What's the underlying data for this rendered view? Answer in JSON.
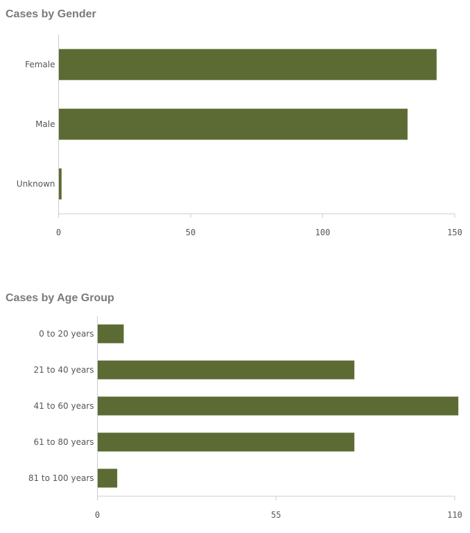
{
  "bar_color": "#5c6b33",
  "chart_data": [
    {
      "type": "bar",
      "orientation": "horizontal",
      "title": "Cases by Gender",
      "categories": [
        "Female",
        "Male",
        "Unknown"
      ],
      "values": [
        143,
        132,
        1
      ],
      "xlim": [
        0,
        150
      ],
      "ticks": [
        0,
        50,
        100,
        150
      ],
      "tick_labels": [
        "0",
        "50",
        "100",
        "150"
      ],
      "grid": false
    },
    {
      "type": "bar",
      "orientation": "horizontal",
      "title": "Cases by Age Group",
      "categories": [
        "0 to 20 years",
        "21 to 40 years",
        "41 to 60 years",
        "61 to 80 years",
        "81 to 100 years"
      ],
      "values": [
        8,
        79,
        111,
        79,
        6
      ],
      "xlim": [
        0,
        110
      ],
      "ticks": [
        0,
        55,
        110
      ],
      "tick_labels": [
        "0",
        "55",
        "110"
      ],
      "grid": false
    }
  ]
}
